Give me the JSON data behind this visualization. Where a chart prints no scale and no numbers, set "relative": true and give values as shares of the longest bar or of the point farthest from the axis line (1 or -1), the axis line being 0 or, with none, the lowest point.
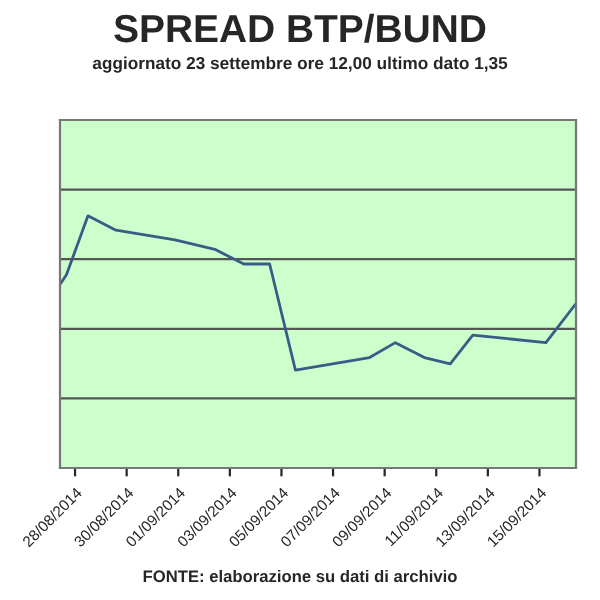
{
  "chart_data": {
    "type": "line",
    "title": "SPREAD BTP/BUND",
    "subtitle": "aggiornato 23 settembre ore 12,00 ultimo dato 1,35",
    "annotations": [
      "FONTE: elaborazione su dati di archivio"
    ],
    "relative": true,
    "grid": "y",
    "marker": "none",
    "line_style": "solid",
    "xlim": [
      "2014-08-27T10:00",
      "2014-09-16T10:00"
    ],
    "xticks": [
      {
        "value": "2014-08-28",
        "label": "28/08/2014"
      },
      {
        "value": "2014-08-30",
        "label": "30/08/2014"
      },
      {
        "value": "2014-09-01",
        "label": "01/09/2014"
      },
      {
        "value": "2014-09-03",
        "label": "03/09/2014"
      },
      {
        "value": "2014-09-05",
        "label": "05/09/2014"
      },
      {
        "value": "2014-09-07",
        "label": "07/09/2014"
      },
      {
        "value": "2014-09-09",
        "label": "09/09/2014"
      },
      {
        "value": "2014-09-11",
        "label": "11/09/2014"
      },
      {
        "value": "2014-09-13",
        "label": "13/09/2014"
      },
      {
        "value": "2014-09-15",
        "label": "15/09/2014"
      }
    ],
    "x": [
      "2014-08-27T10:00",
      "2014-08-27T16:00",
      "2014-08-28T12:00",
      "2014-08-29T14:00",
      "2014-08-31T21:00",
      "2014-09-02T10:00",
      "2014-09-03T13:00",
      "2014-09-04T13:00",
      "2014-09-05T13:00",
      "2014-09-08T10:00",
      "2014-09-09T10:00",
      "2014-09-10T13:00",
      "2014-09-11T13:00",
      "2014-09-12T10:00",
      "2014-09-15T06:00",
      "2014-09-16T10:00"
    ],
    "series": [
      {
        "color": "#3b5b86",
        "values": [
          0.728,
          0.766,
          1.0,
          0.943,
          0.905,
          0.867,
          0.809,
          0.809,
          0.388,
          0.438,
          0.497,
          0.438,
          0.413,
          0.527,
          0.497,
          0.652
        ]
      }
    ]
  }
}
